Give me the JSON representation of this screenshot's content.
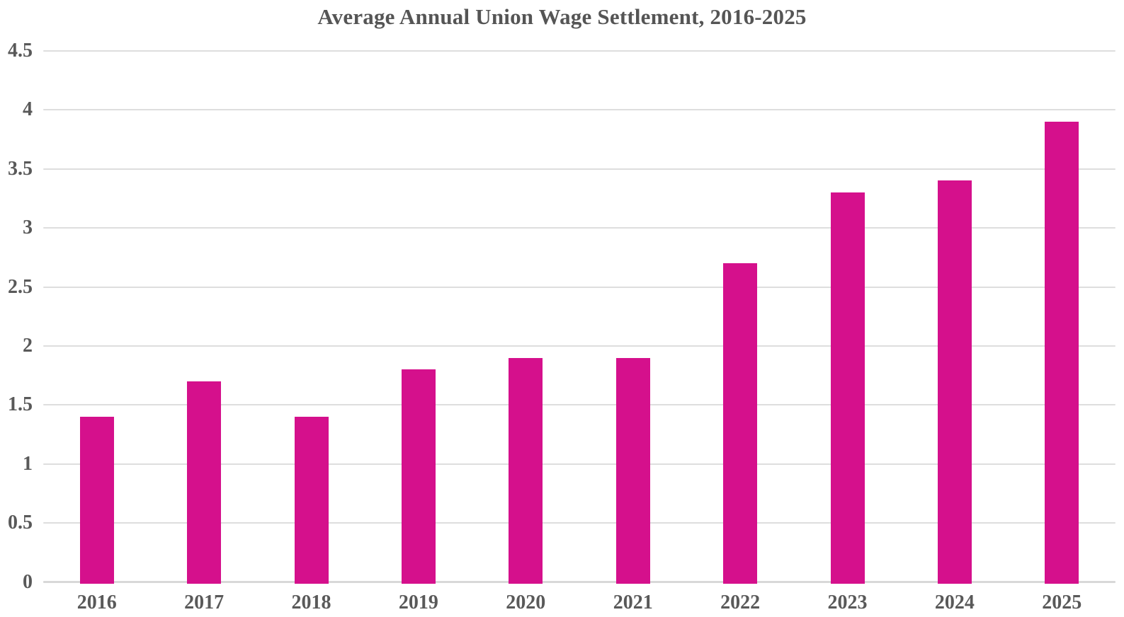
{
  "chart_data": {
    "type": "bar",
    "title": "Average Annual Union Wage Settlement, 2016-2025",
    "categories": [
      "2016",
      "2017",
      "2018",
      "2019",
      "2020",
      "2021",
      "2022",
      "2023",
      "2024",
      "2025"
    ],
    "values": [
      1.4,
      1.7,
      1.4,
      1.8,
      1.9,
      1.9,
      2.7,
      3.3,
      3.4,
      3.9
    ],
    "series_name": "Average annual union wage settlement",
    "xlabel": "",
    "ylabel": "",
    "ylim": [
      0,
      4.5
    ],
    "ytick_step": 0.5,
    "yticks": [
      "0",
      "0.5",
      "1",
      "1.5",
      "2",
      "2.5",
      "3",
      "3.5",
      "4",
      "4.5"
    ],
    "grid": "horizontal",
    "legend_position": "none",
    "colors": {
      "bar": "#D5108C",
      "gridline": "#DEDEDE",
      "zero_line": "#D8D8D8",
      "tick_label": "#595959",
      "title": "#555555",
      "background": "#FFFFFF"
    }
  }
}
